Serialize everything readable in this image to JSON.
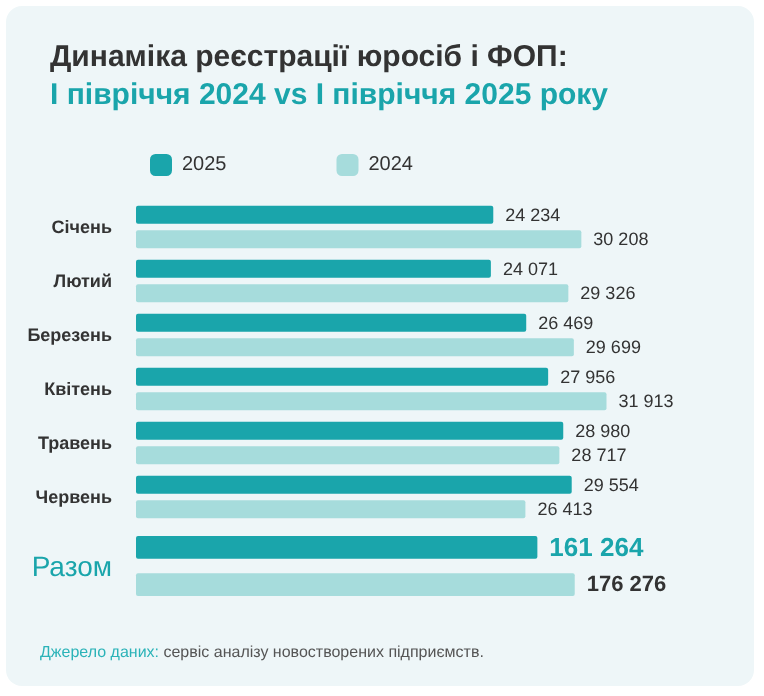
{
  "chart_data": [
    {
      "type": "bar",
      "orientation": "horizontal",
      "title": "Динаміка реєстрації юросіб і ФОП:",
      "subtitle": "І півріччя 2024 vs І півріччя 2025 року",
      "categories": [
        "Січень",
        "Лютий",
        "Березень",
        "Квітень",
        "Травень",
        "Червень"
      ],
      "legend": "top left",
      "series": [
        {
          "name": "2025",
          "color": "#1aa5ab",
          "values": [
            24234,
            24071,
            26469,
            27956,
            28980,
            29554
          ],
          "value_labels": [
            "24 234",
            "24 071",
            "26 469",
            "27 956",
            "28 980",
            "29 554"
          ]
        },
        {
          "name": "2024",
          "color": "#a6dcdc",
          "values": [
            30208,
            29326,
            29699,
            31913,
            28717,
            26413
          ],
          "value_labels": [
            "30 208",
            "29 326",
            "29 699",
            "31 913",
            "28 717",
            "26 413"
          ]
        }
      ]
    },
    {
      "type": "bar",
      "orientation": "horizontal",
      "categories": [
        "Разом"
      ],
      "legend": false,
      "annotations": [
        "Джерело даних: сервіс аналізу новостворених підприємств."
      ],
      "series": [
        {
          "color": "#1aa5ab",
          "values": [
            161264
          ],
          "value_labels": [
            "161 264"
          ]
        },
        {
          "color": "#a6dcdc",
          "values": [
            176276
          ],
          "value_labels": [
            "176 276"
          ]
        }
      ]
    }
  ]
}
